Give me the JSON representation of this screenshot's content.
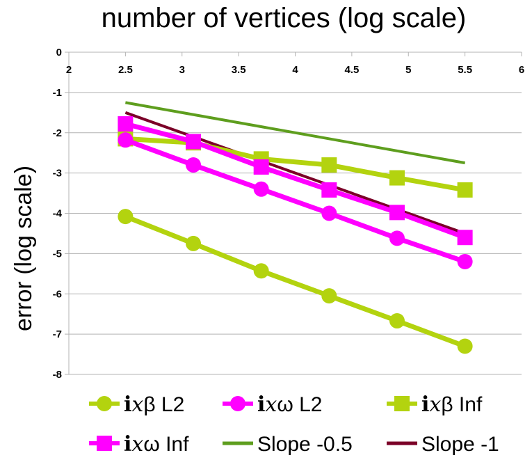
{
  "chart_data": {
    "type": "line",
    "title": "number of vertices (log scale)",
    "xlabel": "",
    "ylabel": "error (log scale)",
    "xlim": [
      2,
      6
    ],
    "ylim": [
      -8,
      0
    ],
    "x_ticks": [
      "2",
      "2.5",
      "3",
      "3.5",
      "4",
      "4.5",
      "5",
      "5.5",
      "6"
    ],
    "y_ticks": [
      "0",
      "-1",
      "-2",
      "-3",
      "-4",
      "-5",
      "-6",
      "-7",
      "-8"
    ],
    "x_tick_values": [
      2,
      2.5,
      3,
      3.5,
      4,
      4.5,
      5,
      5.5,
      6
    ],
    "y_tick_values": [
      0,
      -1,
      -2,
      -3,
      -4,
      -5,
      -6,
      -7,
      -8
    ],
    "grid": "horizontal",
    "legend_position": "bottom",
    "series": [
      {
        "name": "ixβ L2",
        "label_bold": "i",
        "label_italic": "x",
        "label_rest": "β L2",
        "color": "#b3d30f",
        "marker": "circle",
        "x": [
          2.5,
          3.1,
          3.7,
          4.3,
          4.9,
          5.5
        ],
        "y": [
          -4.08,
          -4.75,
          -5.43,
          -6.05,
          -6.67,
          -7.3
        ]
      },
      {
        "name": "ixω L2",
        "label_bold": "i",
        "label_italic": "x",
        "label_rest": "ω L2",
        "color": "#ff00ff",
        "marker": "circle",
        "x": [
          2.5,
          3.1,
          3.7,
          4.3,
          4.9,
          5.5
        ],
        "y": [
          -2.18,
          -2.8,
          -3.4,
          -4.0,
          -4.62,
          -5.2
        ]
      },
      {
        "name": "ixβ Inf",
        "label_bold": "i",
        "label_italic": "x",
        "label_rest": "β Inf",
        "color": "#b3d30f",
        "marker": "square",
        "x": [
          2.5,
          3.1,
          3.7,
          4.3,
          4.9,
          5.5
        ],
        "y": [
          -2.15,
          -2.25,
          -2.65,
          -2.8,
          -3.12,
          -3.42
        ]
      },
      {
        "name": "ixω Inf",
        "label_bold": "i",
        "label_italic": "x",
        "label_rest": "ω Inf",
        "color": "#ff00ff",
        "marker": "square",
        "x": [
          2.5,
          3.1,
          3.7,
          4.3,
          4.9,
          5.5
        ],
        "y": [
          -1.78,
          -2.22,
          -2.85,
          -3.42,
          -3.98,
          -4.6
        ]
      },
      {
        "name": "Slope -0.5",
        "label_bold": "",
        "label_italic": "",
        "label_rest": "Slope -0.5",
        "color": "#5e9e1e",
        "marker": "none",
        "x": [
          2.5,
          5.5
        ],
        "y": [
          -1.25,
          -2.75
        ]
      },
      {
        "name": "Slope -1",
        "label_bold": "",
        "label_italic": "",
        "label_rest": "Slope -1",
        "color": "#7b0028",
        "marker": "none",
        "x": [
          2.5,
          5.5
        ],
        "y": [
          -1.5,
          -4.5
        ]
      }
    ]
  }
}
